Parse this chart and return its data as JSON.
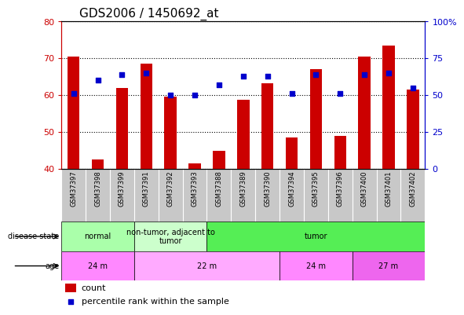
{
  "title": "GDS2006 / 1450692_at",
  "samples": [
    "GSM37397",
    "GSM37398",
    "GSM37399",
    "GSM37391",
    "GSM37392",
    "GSM37393",
    "GSM37388",
    "GSM37389",
    "GSM37390",
    "GSM37394",
    "GSM37395",
    "GSM37396",
    "GSM37400",
    "GSM37401",
    "GSM37402"
  ],
  "count_values": [
    70.5,
    42.5,
    62.0,
    68.5,
    59.5,
    41.5,
    44.8,
    58.8,
    63.2,
    48.5,
    67.0,
    49.0,
    70.5,
    73.5,
    61.5
  ],
  "percentile_values": [
    51,
    60,
    64,
    65,
    50,
    50,
    57,
    63,
    63,
    51,
    64,
    51,
    64,
    65,
    55
  ],
  "ymin": 40,
  "ymax": 80,
  "y2min": 0,
  "y2max": 100,
  "yticks_left": [
    40,
    50,
    60,
    70,
    80
  ],
  "yticks_right": [
    0,
    25,
    50,
    75,
    100
  ],
  "bar_color": "#cc0000",
  "dot_color": "#0000cc",
  "bar_bottom": 40,
  "disease_state_groups": [
    {
      "label": "normal",
      "start": 0,
      "end": 3,
      "color": "#aaffaa"
    },
    {
      "label": "non-tumor, adjacent to\ntumor",
      "start": 3,
      "end": 6,
      "color": "#ccffcc"
    },
    {
      "label": "tumor",
      "start": 6,
      "end": 15,
      "color": "#55ee55"
    }
  ],
  "age_groups": [
    {
      "label": "24 m",
      "start": 0,
      "end": 3,
      "color": "#ff88ff"
    },
    {
      "label": "22 m",
      "start": 3,
      "end": 9,
      "color": "#ffaaff"
    },
    {
      "label": "24 m",
      "start": 9,
      "end": 12,
      "color": "#ff88ff"
    },
    {
      "label": "27 m",
      "start": 12,
      "end": 15,
      "color": "#ee66ee"
    }
  ],
  "legend_count_color": "#cc0000",
  "legend_dot_color": "#0000cc",
  "grid_color": "black",
  "tick_color_left": "#cc0000",
  "tick_color_right": "#0000cc",
  "bg_color": "#ffffff",
  "plot_bg_color": "#ffffff",
  "label_row_color": "#c8c8c8",
  "label_fontsize": 6,
  "title_fontsize": 11
}
